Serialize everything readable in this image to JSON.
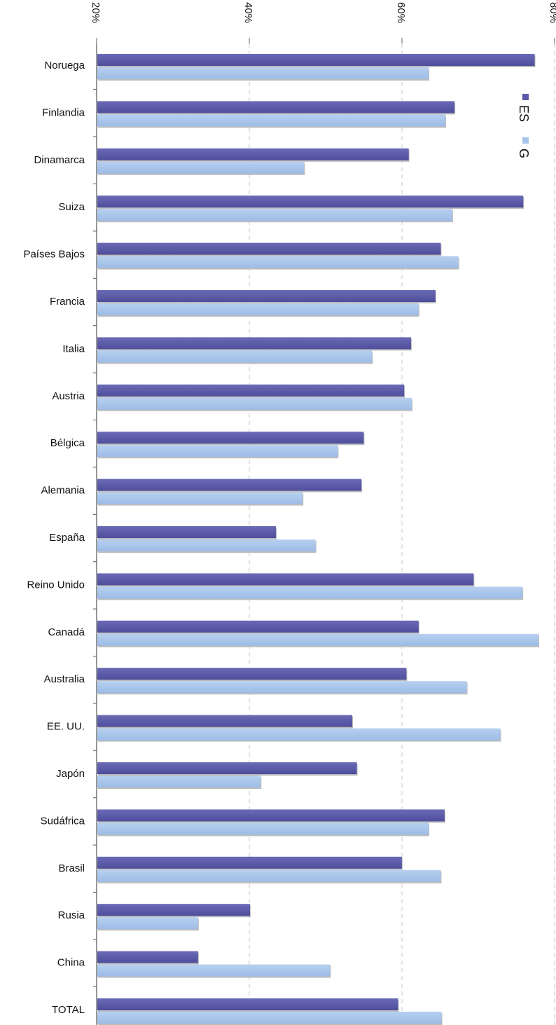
{
  "chart_data": {
    "type": "bar",
    "orientation": "horizontal",
    "title": "",
    "xlabel": "",
    "ylabel": "",
    "xlim": [
      0.2,
      0.8
    ],
    "ticks": [
      {
        "value": 0.2,
        "label": "20%"
      },
      {
        "value": 0.4,
        "label": "40%"
      },
      {
        "value": 0.6,
        "label": "60%"
      },
      {
        "value": 0.8,
        "label": "80%"
      }
    ],
    "grid": "vertical dashed",
    "legend_position": "right",
    "categories": [
      "Noruega",
      "Finlandia",
      "Dinamarca",
      "Suiza",
      "Países Bajos",
      "Francia",
      "Italia",
      "Austria",
      "Bélgica",
      "Alemania",
      "España",
      "Reino Unido",
      "Canadá",
      "Australia",
      "EE. UU.",
      "Japón",
      "Sudáfrica",
      "Brasil",
      "Rusia",
      "China",
      "TOTAL"
    ],
    "series": [
      {
        "name": "ES",
        "color": "#5a5aa8",
        "values": [
          0.773,
          0.668,
          0.608,
          0.758,
          0.65,
          0.643,
          0.611,
          0.602,
          0.549,
          0.546,
          0.434,
          0.693,
          0.621,
          0.605,
          0.534,
          0.54,
          0.655,
          0.599,
          0.4,
          0.332,
          0.594
        ]
      },
      {
        "name": "G",
        "color": "#a9c6ea",
        "values": [
          0.634,
          0.656,
          0.471,
          0.665,
          0.673,
          0.621,
          0.56,
          0.612,
          0.515,
          0.469,
          0.486,
          0.757,
          0.778,
          0.684,
          0.728,
          0.414,
          0.634,
          0.65,
          0.332,
          0.505,
          0.651
        ]
      }
    ]
  }
}
